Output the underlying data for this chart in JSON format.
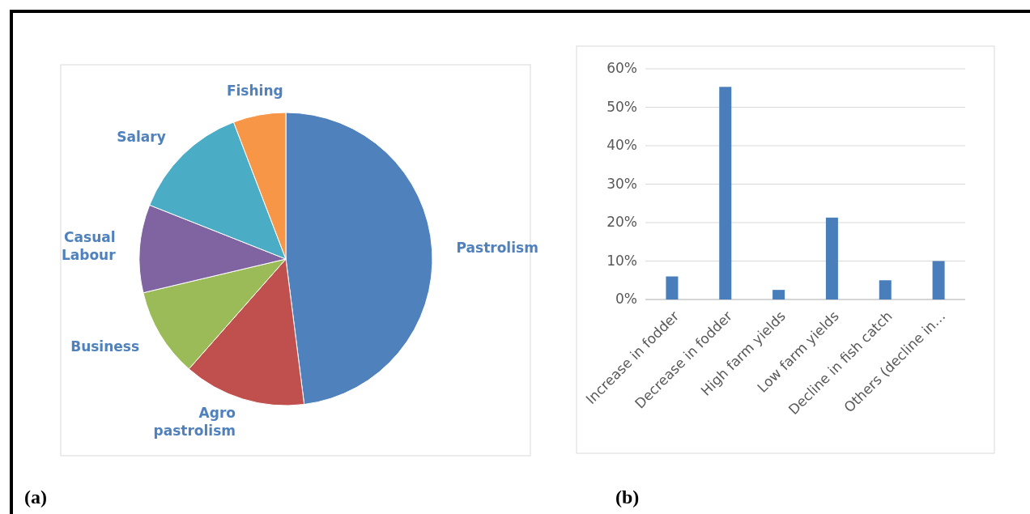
{
  "chart_data": [
    {
      "type": "pie",
      "categories": [
        "Pastrolism",
        "Agro pastrolism",
        "Business",
        "Casual Labour",
        "Salary",
        "Fishing"
      ],
      "values": [
        48,
        13.5,
        9.8,
        9.7,
        13.2,
        5.8
      ],
      "colors": [
        "#4f81bd",
        "#c0504d",
        "#9bbb59",
        "#8064a2",
        "#4bacc6",
        "#f79646"
      ],
      "annotations": [
        "(a)"
      ]
    },
    {
      "type": "bar",
      "categories": [
        "Increase in fodder",
        "Decrease in fodder",
        "High farm yields",
        "Low farm yields",
        "Decline in fish catch",
        "Others (decline in…"
      ],
      "values": [
        0.06,
        0.553,
        0.025,
        0.213,
        0.05,
        0.1
      ],
      "color": "#4a7ebb",
      "ylim": [
        0,
        0.6
      ],
      "yticks": [
        {
          "value": 0,
          "label": "0%"
        },
        {
          "value": 0.1,
          "label": "10%"
        },
        {
          "value": 0.2,
          "label": "20%"
        },
        {
          "value": 0.3,
          "label": "30%"
        },
        {
          "value": 0.4,
          "label": "40%"
        },
        {
          "value": 0.5,
          "label": "50%"
        },
        {
          "value": 0.6,
          "label": "60%"
        }
      ],
      "grid": "y",
      "annotations": [
        "(b)"
      ]
    }
  ]
}
